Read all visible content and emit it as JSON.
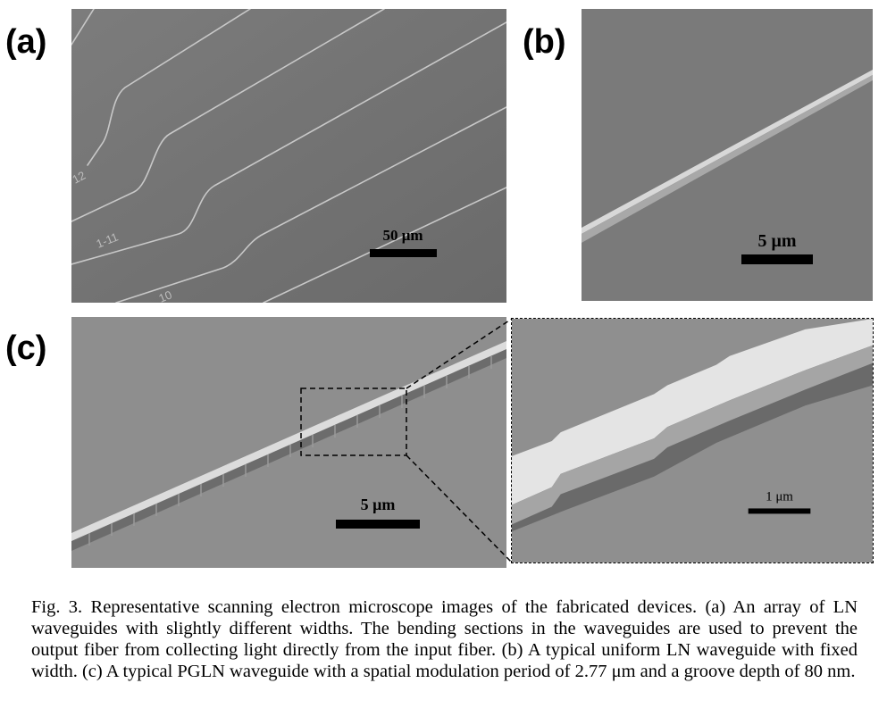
{
  "figure": {
    "panels": {
      "a": {
        "label": "(a)",
        "scale_bar": "50 μm",
        "waveguide_labels": [
          "12",
          "1-11",
          "10"
        ]
      },
      "b": {
        "label": "(b)",
        "scale_bar": "5 μm"
      },
      "c": {
        "label": "(c)",
        "scale_bar": "5 μm",
        "inset_scale_bar": "1 μm"
      }
    },
    "caption": "Fig. 3. Representative scanning electron microscope images of the fabricated devices. (a) An array of LN waveguides with slightly different widths. The bending sections in the waveguides are used to prevent the output fiber from collecting light directly from the input fiber. (b) A typical uniform LN waveguide with fixed width. (c) A typical PGLN waveguide with a spatial modulation period of 2.77 μm and a groove depth of 80 nm."
  }
}
